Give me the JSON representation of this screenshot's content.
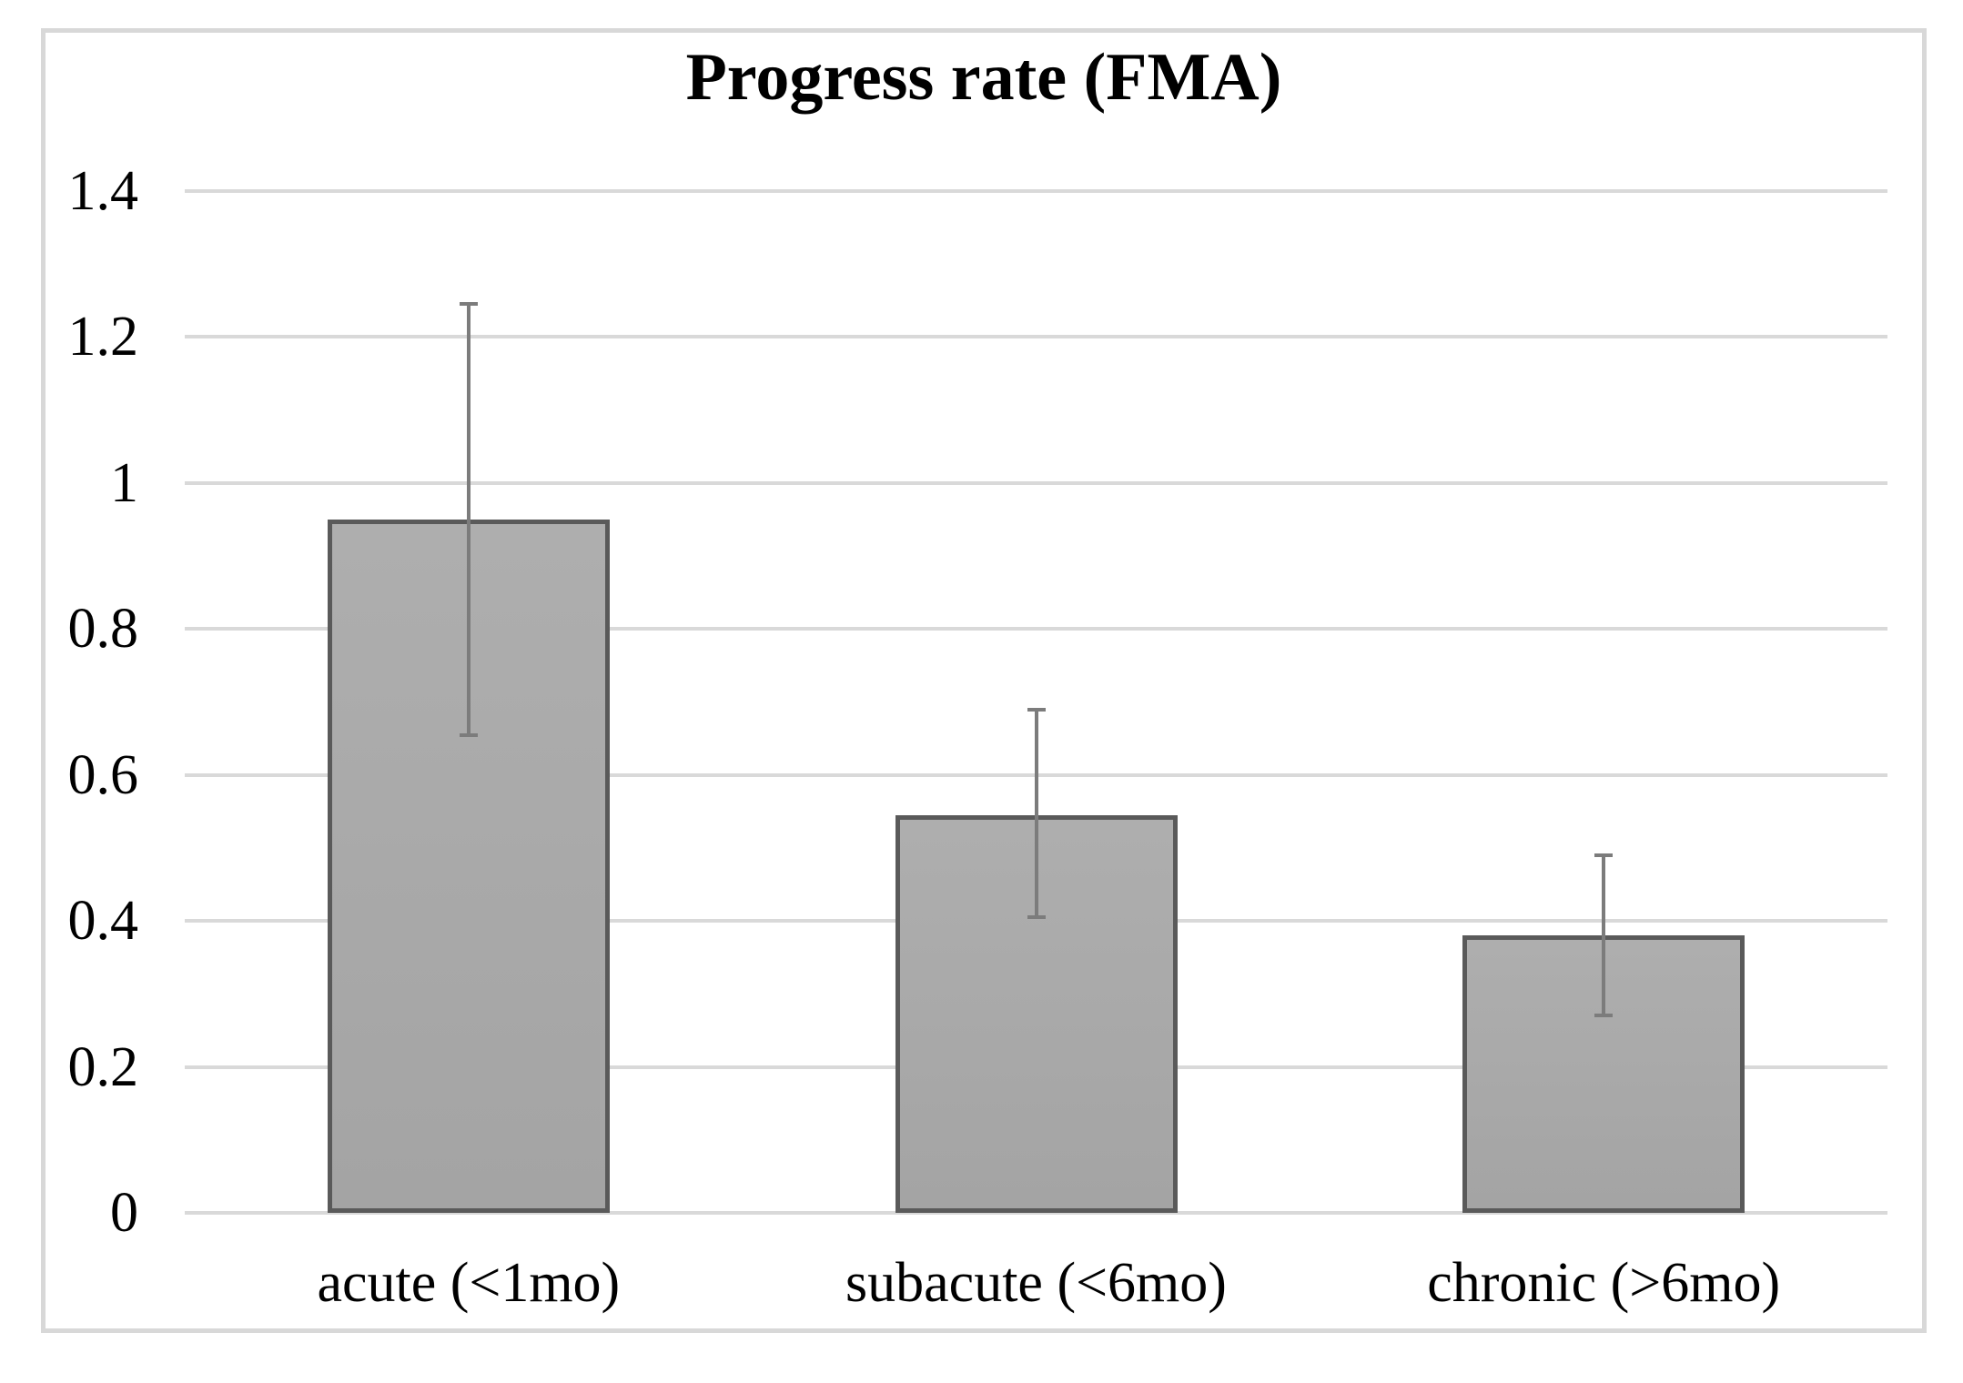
{
  "chart_data": {
    "type": "bar",
    "title": "Progress rate (FMA)",
    "categories": [
      "acute (<1mo)",
      "subacute (<6mo)",
      "chronic (>6mo)"
    ],
    "values": [
      0.95,
      0.545,
      0.38
    ],
    "error_bars": [
      {
        "upper": 1.245,
        "lower": 0.655
      },
      {
        "upper": 0.69,
        "lower": 0.405
      },
      {
        "upper": 0.49,
        "lower": 0.27
      }
    ],
    "xlabel": "",
    "ylabel": "",
    "ylim": [
      0,
      1.4
    ],
    "ytick_values": [
      0,
      0.2,
      0.4,
      0.6,
      0.8,
      1,
      1.2,
      1.4
    ],
    "ytick_labels": [
      "0",
      "0.2",
      "0.4",
      "0.6",
      "0.8",
      "1",
      "1.2",
      "1.4"
    ],
    "grid": true,
    "legend": false,
    "colors": {
      "background": "#ffffff",
      "frame": "#d8d8d8",
      "gridline": "#d9d9d9",
      "bar_fill_top": "#aeaeae",
      "bar_fill_bottom": "#a4a4a4",
      "bar_border": "#5a5a5a",
      "error_bar": "#7c7c7c",
      "text": "#000000"
    }
  }
}
